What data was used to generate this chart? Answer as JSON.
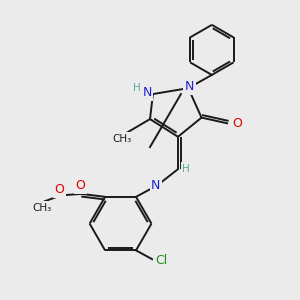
{
  "bg_color": "#ebebeb",
  "bond_color": "#1a1a1a",
  "bond_width": 1.4,
  "atom_colors": {
    "N": "#2020d0",
    "O": "#e00000",
    "Cl": "#228b22",
    "H": "#5ba8a0",
    "C": "#1a1a1a"
  },
  "fig_w": 3.0,
  "fig_h": 3.0,
  "dpi": 100,
  "xlim": [
    0,
    10
  ],
  "ylim": [
    0,
    10
  ]
}
